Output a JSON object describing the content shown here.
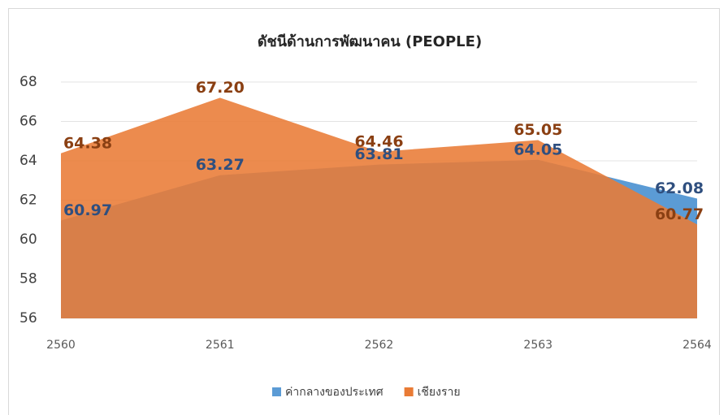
{
  "chart_data": {
    "type": "area",
    "title": "ดัชนีด้านการพัฒนาคน (PEOPLE)",
    "x": [
      2560,
      2561,
      2562,
      2563,
      2564
    ],
    "xlim": [
      2560,
      2564
    ],
    "series": [
      {
        "name": "ค่ากลางของประเทศ",
        "color": "#5b9bd5",
        "label_color": "#2f4f7f",
        "values": [
          60.97,
          63.27,
          63.81,
          64.05,
          62.08
        ],
        "value_labels": [
          "60.97",
          "63.27",
          "63.81",
          "64.05",
          "62.08"
        ]
      },
      {
        "name": "เชียงราย",
        "color": "#e97b35",
        "label_color": "#8a3f12",
        "values": [
          64.38,
          67.2,
          64.46,
          65.05,
          60.77
        ],
        "value_labels": [
          "64.38",
          "67.20",
          "64.46",
          "65.05",
          "60.77"
        ]
      }
    ],
    "ylim": [
      56,
      68
    ],
    "yticks": [
      56,
      58,
      60,
      62,
      64,
      66,
      68
    ],
    "grid": true,
    "legend": "bottom"
  }
}
